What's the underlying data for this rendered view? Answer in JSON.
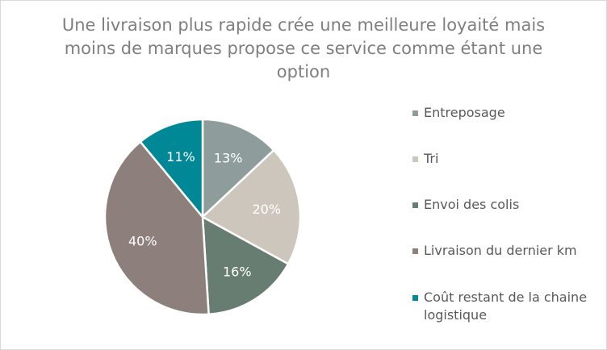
{
  "chart_data": {
    "type": "pie",
    "title": "Une livraison plus rapide crée une meilleure loyaité mais moins de marques propose ce service comme étant une option",
    "categories": [
      "Entreposage",
      "Tri",
      "Envoi des colis",
      "Livraison du dernier km",
      "Coût restant de la chaine logistique"
    ],
    "values": [
      13,
      20,
      16,
      40,
      11
    ],
    "data_labels": [
      "13%",
      "20%",
      "16%",
      "40%",
      "11%"
    ],
    "colors": [
      "#8e9c9b",
      "#cdc6bc",
      "#687d72",
      "#8d7f7c",
      "#008896"
    ],
    "legend_position": "right"
  }
}
